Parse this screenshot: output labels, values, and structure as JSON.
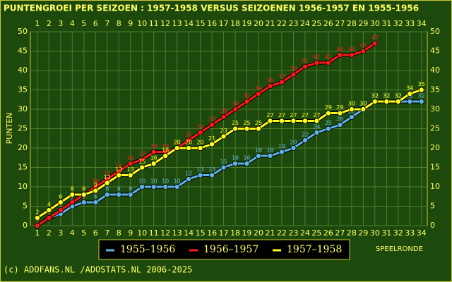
{
  "chart_data": {
    "type": "line",
    "title": "PUNTENGROEI PER SEIZOEN : 1957-1958 VERSUS SEIZOENEN 1956-1957 EN 1955-1956",
    "y_label": "PUNTEN",
    "x_label": "SPEELRONDE",
    "footer": "(c) ADOFANS.NL /ADOSTATS.NL 2006-2025",
    "x": [
      1,
      2,
      3,
      4,
      5,
      6,
      7,
      8,
      9,
      10,
      11,
      12,
      13,
      14,
      15,
      16,
      17,
      18,
      19,
      20,
      21,
      22,
      23,
      24,
      25,
      26,
      27,
      28,
      29,
      30,
      31,
      32,
      33,
      34
    ],
    "xlim": [
      0.4,
      34.5
    ],
    "xticks": [
      1,
      2,
      3,
      4,
      5,
      6,
      7,
      8,
      9,
      10,
      11,
      12,
      13,
      14,
      15,
      16,
      17,
      18,
      19,
      20,
      21,
      22,
      23,
      24,
      25,
      26,
      27,
      28,
      29,
      30,
      31,
      32,
      33,
      34
    ],
    "ylim": [
      0,
      50
    ],
    "yticks": [
      0,
      5,
      10,
      15,
      20,
      25,
      30,
      35,
      40,
      45,
      50
    ],
    "grid": true,
    "series": [
      {
        "name": "1955–1956",
        "color": "#5fb4e6",
        "values": [
          0,
          2,
          3,
          5,
          6,
          6,
          8,
          8,
          8,
          10,
          10,
          10,
          10,
          12,
          13,
          13,
          15,
          16,
          16,
          18,
          18,
          19,
          20,
          22,
          24,
          25,
          26,
          28,
          30,
          32,
          32,
          32,
          32,
          32
        ]
      },
      {
        "name": "1956–1957",
        "color": "#ff1a1a",
        "values": [
          0,
          2,
          4,
          6,
          8,
          10,
          12,
          14,
          16,
          17,
          19,
          19,
          20,
          22,
          24,
          26,
          28,
          30,
          32,
          34,
          36,
          37,
          39,
          41,
          42,
          42,
          44,
          44,
          45,
          47,
          null,
          null,
          null,
          null
        ]
      },
      {
        "name": "1957–1958",
        "color": "#ffff1a",
        "values": [
          2,
          4,
          6,
          8,
          8,
          9,
          11,
          13,
          13,
          15,
          16,
          18,
          20,
          20,
          20,
          21,
          23,
          25,
          25,
          25,
          27,
          27,
          27,
          27,
          27,
          29,
          29,
          30,
          30,
          32,
          32,
          32,
          34,
          35
        ]
      }
    ]
  }
}
